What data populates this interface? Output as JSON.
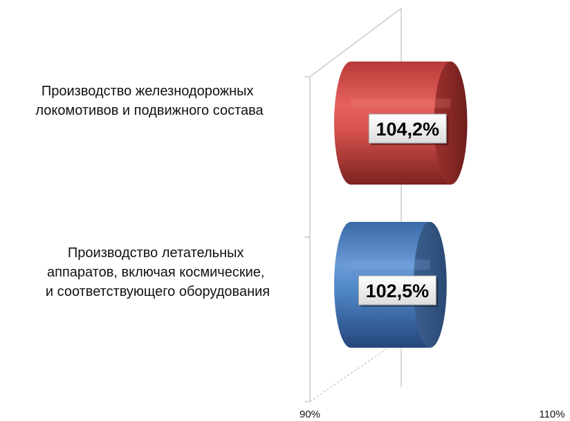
{
  "chart_data": {
    "type": "bar",
    "orientation": "horizontal",
    "style": "3d-cylinder",
    "categories": [
      "Производство железнодорожных локомотивов и подвижного состава",
      "Производство летательных аппаратов, включая космические, и соответствующего оборудования"
    ],
    "category_lines": [
      [
        "Производство  железнодорожных",
        "локомотивов  и подвижного  состава"
      ],
      [
        "Производство  летательных",
        "аппаратов,  включая космические,",
        "и соответствующего  оборудования"
      ]
    ],
    "values": [
      104.2,
      102.5
    ],
    "data_labels": [
      "104,2%",
      "102,5%"
    ],
    "colors": [
      "#d9534f",
      "#4f86c6"
    ],
    "xlim": [
      90,
      110
    ],
    "x_ticks": [
      "90%",
      "110%"
    ],
    "grid": false,
    "legend": "none",
    "title": "",
    "xlabel": "",
    "ylabel": ""
  }
}
